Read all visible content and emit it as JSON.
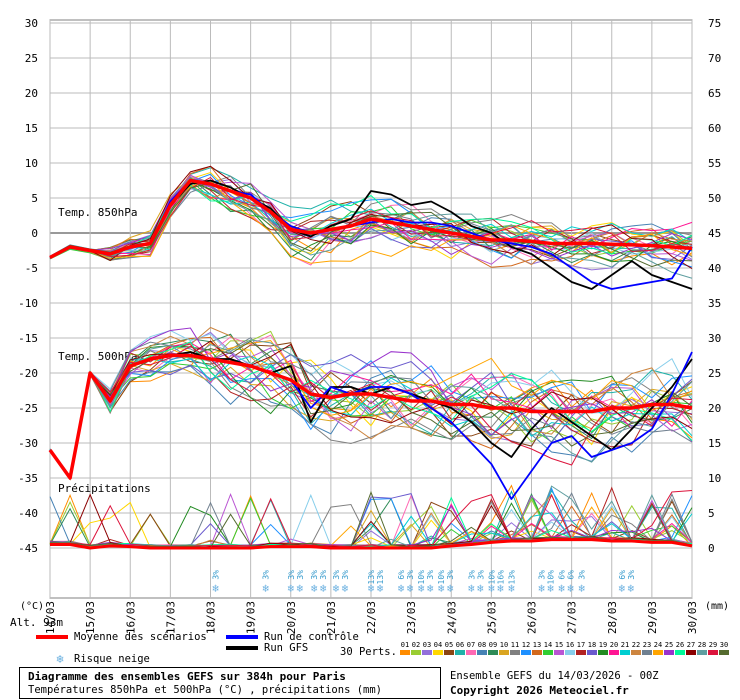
{
  "chart_data": {
    "type": "line",
    "title": "Diagramme des ensembles GEFS sur 384h pour Paris",
    "subtitle": "Températures 850hPa et 500hPa (°C) , précipitations (mm)",
    "dates": [
      "14/03",
      "15/03",
      "16/03",
      "17/03",
      "18/03",
      "19/03",
      "20/03",
      "21/03",
      "22/03",
      "23/03",
      "24/03",
      "25/03",
      "26/03",
      "27/03",
      "28/03",
      "29/03",
      "30/03"
    ],
    "left_axis_ticks": [
      "30",
      "25",
      "20",
      "15",
      "10",
      "5",
      "0",
      "-5",
      "-10",
      "-15",
      "-20",
      "-25",
      "-30",
      "-35",
      "-40",
      "-45"
    ],
    "right_axis_ticks": [
      "75",
      "70",
      "65",
      "60",
      "55",
      "50",
      "45",
      "40",
      "35",
      "30",
      "25",
      "20",
      "15",
      "10",
      "5",
      "0"
    ],
    "left_unit": "(°C)",
    "right_unit": "(mm)",
    "altitude": "Alt. 93m",
    "panel_labels": {
      "t850": "Temp. 850hPa",
      "t500": "Temp. 500hPa",
      "precip": "Précipitations"
    },
    "x_hours": [
      0,
      12,
      24,
      36,
      48,
      60,
      72,
      84,
      96,
      108,
      120,
      132,
      144,
      156,
      168,
      180,
      192,
      204,
      216,
      228,
      240,
      252,
      264,
      276,
      288,
      300,
      312,
      324,
      336,
      348,
      360,
      372,
      384
    ],
    "t850_mean": [
      -3.5,
      -2.0,
      -2.5,
      -3.0,
      -2.0,
      -1.5,
      4.0,
      7.5,
      7.0,
      6.0,
      5.0,
      3.0,
      0.5,
      0.0,
      0.5,
      1.0,
      2.0,
      1.5,
      1.0,
      0.5,
      0.0,
      -0.5,
      -1.0,
      -1.0,
      -1.2,
      -1.5,
      -1.5,
      -1.5,
      -1.6,
      -1.7,
      -1.8,
      -2.0,
      -2.2
    ],
    "t850_control": [
      -3.5,
      -2.0,
      -2.5,
      -3.0,
      -2.0,
      -1.5,
      4.5,
      7.5,
      7.0,
      6.0,
      5.5,
      3.0,
      1.0,
      0.0,
      0.5,
      1.0,
      1.5,
      2.0,
      1.5,
      1.5,
      1.0,
      0.0,
      -1.0,
      -1.5,
      -2.0,
      -3.0,
      -5.0,
      -7.0,
      -8.0,
      -7.5,
      -7.0,
      -6.5,
      -2.0
    ],
    "t850_gfs": [
      -3.5,
      -2.0,
      -2.5,
      -3.0,
      -2.0,
      -1.5,
      4.0,
      7.0,
      7.5,
      6.5,
      5.0,
      3.5,
      0.5,
      -0.5,
      1.0,
      2.0,
      6.0,
      5.5,
      4.0,
      4.5,
      3.0,
      1.0,
      0.0,
      -2.0,
      -3.0,
      -5.0,
      -7.0,
      -8.0,
      -6.0,
      -4.0,
      -6.0,
      -7.0,
      -8.0
    ],
    "t500_mean": [
      -31.0,
      -35.0,
      -20.0,
      -24.0,
      -19.0,
      -18.0,
      -17.5,
      -17.5,
      -18.0,
      -18.5,
      -19.0,
      -20.0,
      -21.0,
      -23.0,
      -23.5,
      -23.0,
      -23.0,
      -23.5,
      -24.0,
      -24.0,
      -24.5,
      -24.5,
      -25.0,
      -25.0,
      -25.5,
      -25.5,
      -25.5,
      -25.5,
      -25.0,
      -25.0,
      -24.5,
      -24.5,
      -25.0
    ],
    "t500_control": [
      -31.0,
      -35.0,
      -20.0,
      -24.0,
      -19.0,
      -18.0,
      -17.5,
      -17.5,
      -18.0,
      -18.5,
      -19.0,
      -20.0,
      -21.0,
      -25.0,
      -22.0,
      -23.0,
      -22.0,
      -22.0,
      -23.0,
      -25.0,
      -27.0,
      -30.0,
      -33.0,
      -38.0,
      -34.0,
      -30.0,
      -29.0,
      -32.0,
      -31.0,
      -30.0,
      -28.0,
      -23.0,
      -17.0
    ],
    "t500_gfs": [
      -31.0,
      -35.0,
      -20.0,
      -24.0,
      -19.0,
      -18.0,
      -17.5,
      -17.0,
      -18.0,
      -18.0,
      -19.0,
      -20.0,
      -19.0,
      -27.0,
      -22.0,
      -22.0,
      -23.0,
      -22.0,
      -23.0,
      -24.0,
      -25.0,
      -27.0,
      -30.0,
      -32.0,
      -28.0,
      -25.0,
      -27.0,
      -29.0,
      -31.0,
      -28.0,
      -25.0,
      -22.0,
      -18.0
    ],
    "precip_mean": [
      0.5,
      0.5,
      0,
      0.3,
      0.2,
      0,
      0,
      0,
      0,
      0,
      0,
      0.2,
      0.2,
      0.2,
      0,
      0,
      0,
      0,
      0,
      0,
      0.3,
      0.5,
      0.8,
      1.0,
      1.0,
      1.2,
      1.2,
      1.2,
      1.0,
      1.0,
      0.8,
      0.8,
      0.3
    ],
    "snow_risk": [
      {
        "date_hours": 99,
        "pct": [
          "3%"
        ]
      },
      {
        "date_hours": 129,
        "pct": [
          "3%"
        ]
      },
      {
        "date_hours": 144,
        "pct": [
          "3%",
          "3%"
        ]
      },
      {
        "date_hours": 158,
        "pct": [
          "3%",
          "3%"
        ]
      },
      {
        "date_hours": 171,
        "pct": [
          "3%",
          "3%"
        ]
      },
      {
        "date_hours": 192,
        "pct": [
          "13%",
          "13%"
        ]
      },
      {
        "date_hours": 210,
        "pct": [
          "6%",
          "3%"
        ]
      },
      {
        "date_hours": 222,
        "pct": [
          "10%",
          "3%"
        ]
      },
      {
        "date_hours": 234,
        "pct": [
          "10%",
          "3%"
        ]
      },
      {
        "date_hours": 252,
        "pct": [
          "3%",
          "3%"
        ]
      },
      {
        "date_hours": 264,
        "pct": [
          "10%",
          "16%"
        ]
      },
      {
        "date_hours": 276,
        "pct": [
          "13%"
        ]
      },
      {
        "date_hours": 294,
        "pct": [
          "3%",
          "10%"
        ]
      },
      {
        "date_hours": 306,
        "pct": [
          "6%",
          "6%"
        ]
      },
      {
        "date_hours": 318,
        "pct": [
          "3%"
        ]
      },
      {
        "date_hours": 342,
        "pct": [
          "6%",
          "3%"
        ]
      }
    ],
    "legend": {
      "mean": "Moyenne des scénarios",
      "control": "Run de contrôle",
      "gfs": "Run GFS",
      "snow": "Risque neige",
      "perts": "30 Perts."
    },
    "pert_numbers": [
      "01",
      "02",
      "03",
      "04",
      "05",
      "06",
      "07",
      "08",
      "09",
      "10",
      "11",
      "12",
      "13",
      "14",
      "15",
      "16",
      "17",
      "18",
      "19",
      "20",
      "21",
      "22",
      "23",
      "24",
      "25",
      "26",
      "27",
      "28",
      "29",
      "30"
    ],
    "pert_colors": [
      "#ff8c00",
      "#9acd32",
      "#9370db",
      "#ffd700",
      "#8b4513",
      "#20b2aa",
      "#ff69b4",
      "#4682b4",
      "#2e8b57",
      "#daa520",
      "#808080",
      "#1e90ff",
      "#d2691e",
      "#32cd32",
      "#ba55d3",
      "#87ceeb",
      "#b22222",
      "#6a5acd",
      "#228b22",
      "#ff1493",
      "#00ced1",
      "#cd853f",
      "#708090",
      "#ffa500",
      "#9932cc",
      "#00fa9a",
      "#8b0000",
      "#5f9ea0",
      "#dc143c",
      "#556b2f"
    ],
    "mean_color": "#ff0000",
    "control_color": "#0000ff",
    "gfs_color": "#000000"
  },
  "footer": {
    "run_label": "Ensemble GEFS du 14/03/2026 - 00Z",
    "copyright": "Copyright 2026 Meteociel.fr"
  }
}
